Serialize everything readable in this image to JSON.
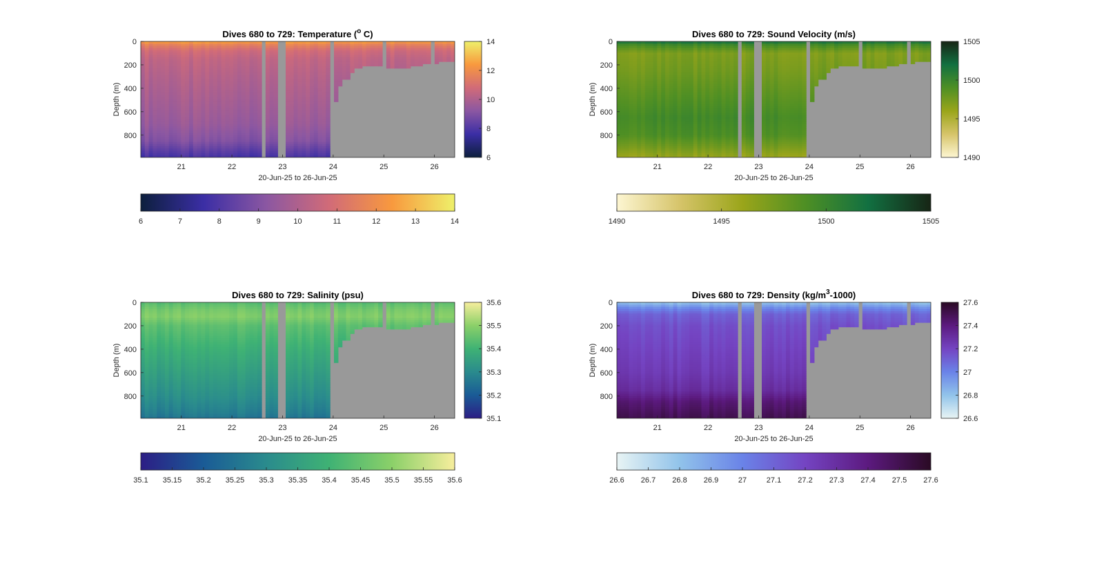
{
  "figure": {
    "x_range_label": "20-Jun-25 to 26-Jun-25",
    "depth_label": "Depth (m)"
  },
  "chart_data": [
    {
      "type": "heatmap",
      "id": "temperature",
      "title": "Dives 680 to 729: Temperature (",
      "title_sup": "o",
      "title_tail": " C)",
      "xlabel": "20-Jun-25 to 26-Jun-25",
      "ylabel": "Depth (m)",
      "xlim": [
        20.2,
        26.4
      ],
      "ylim": [
        0,
        990
      ],
      "y_reversed": true,
      "x_ticks": [
        21,
        22,
        23,
        24,
        25,
        26
      ],
      "y_ticks": [
        0,
        200,
        400,
        600,
        800
      ],
      "clim": [
        6,
        14
      ],
      "colormap": [
        "#0c1f3d",
        "#3b2ea5",
        "#8b57a2",
        "#d16b78",
        "#f8993e",
        "#eef06a"
      ],
      "colorbar_ticks": [
        6,
        8,
        10,
        12,
        14
      ],
      "h_colorbar_ticks": [
        6,
        7,
        8,
        9,
        10,
        11,
        12,
        13,
        14
      ],
      "profile": [
        [
          0,
          12.6
        ],
        [
          30,
          11.6
        ],
        [
          80,
          10.8
        ],
        [
          150,
          10.4
        ],
        [
          300,
          10.1
        ],
        [
          500,
          9.8
        ],
        [
          700,
          9.5
        ],
        [
          850,
          9.0
        ],
        [
          930,
          8.3
        ],
        [
          990,
          7.8
        ]
      ]
    },
    {
      "type": "heatmap",
      "id": "sound_velocity",
      "title": "Dives 680 to 729: Sound Velocity (m/s)",
      "title_sup": "",
      "title_tail": "",
      "xlabel": "20-Jun-25 to 26-Jun-25",
      "ylabel": "Depth (m)",
      "xlim": [
        20.2,
        26.4
      ],
      "ylim": [
        0,
        990
      ],
      "y_reversed": true,
      "x_ticks": [
        21,
        22,
        23,
        24,
        25,
        26
      ],
      "y_ticks": [
        0,
        200,
        400,
        600,
        800
      ],
      "clim": [
        1490,
        1505
      ],
      "colormap": [
        "#fdf6d2",
        "#d6c46a",
        "#9aa51a",
        "#4e8f24",
        "#127041",
        "#172515"
      ],
      "colorbar_ticks": [
        1490,
        1495,
        1500,
        1505
      ],
      "h_colorbar_ticks": [
        1490,
        1495,
        1500,
        1505
      ],
      "profile": [
        [
          0,
          1502.0
        ],
        [
          30,
          1499.5
        ],
        [
          100,
          1497.0
        ],
        [
          250,
          1497.5
        ],
        [
          450,
          1498.5
        ],
        [
          650,
          1499.5
        ],
        [
          800,
          1499.0
        ],
        [
          900,
          1497.5
        ],
        [
          990,
          1496.0
        ]
      ]
    },
    {
      "type": "heatmap",
      "id": "salinity",
      "title": "Dives 680 to 729: Salinity (psu)",
      "title_sup": "",
      "title_tail": "",
      "xlabel": "20-Jun-25 to 26-Jun-25",
      "ylabel": "Depth (m)",
      "xlim": [
        20.2,
        26.4
      ],
      "ylim": [
        0,
        990
      ],
      "y_reversed": true,
      "x_ticks": [
        21,
        22,
        23,
        24,
        25,
        26
      ],
      "y_ticks": [
        0,
        200,
        400,
        600,
        800
      ],
      "clim": [
        35.1,
        35.6
      ],
      "colormap": [
        "#2c1e85",
        "#1a5b96",
        "#2a8b8d",
        "#3fb274",
        "#8bd069",
        "#f7ee9d"
      ],
      "colorbar_ticks": [
        35.1,
        35.2,
        35.3,
        35.4,
        35.5,
        35.6
      ],
      "h_colorbar_ticks": [
        35.1,
        35.15,
        35.2,
        35.25,
        35.3,
        35.35,
        35.4,
        35.45,
        35.5,
        35.55,
        35.6
      ],
      "profile": [
        [
          0,
          35.43
        ],
        [
          60,
          35.47
        ],
        [
          120,
          35.49
        ],
        [
          200,
          35.44
        ],
        [
          400,
          35.39
        ],
        [
          600,
          35.35
        ],
        [
          800,
          35.31
        ],
        [
          950,
          35.27
        ],
        [
          990,
          35.25
        ]
      ]
    },
    {
      "type": "heatmap",
      "id": "density",
      "title": "Dives 680 to 729: Density (kg/m",
      "title_sup": "3",
      "title_tail": "-1000)",
      "xlabel": "20-Jun-25 to 26-Jun-25",
      "ylabel": "Depth (m)",
      "xlim": [
        20.2,
        26.4
      ],
      "ylim": [
        0,
        990
      ],
      "y_reversed": true,
      "x_ticks": [
        21,
        22,
        23,
        24,
        25,
        26
      ],
      "y_ticks": [
        0,
        200,
        400,
        600,
        800
      ],
      "clim": [
        26.6,
        27.6
      ],
      "colormap": [
        "#e8f4f4",
        "#91c3ea",
        "#6a83e8",
        "#7444c2",
        "#5c1a7f",
        "#2a0a24"
      ],
      "colorbar_ticks": [
        26.6,
        26.8,
        27,
        27.2,
        27.4,
        27.6
      ],
      "h_colorbar_ticks": [
        26.6,
        26.7,
        26.8,
        26.9,
        27,
        27.1,
        27.2,
        27.3,
        27.4,
        27.5,
        27.6
      ],
      "profile": [
        [
          0,
          26.78
        ],
        [
          40,
          26.95
        ],
        [
          100,
          27.1
        ],
        [
          200,
          27.16
        ],
        [
          400,
          27.2
        ],
        [
          600,
          27.24
        ],
        [
          750,
          27.3
        ],
        [
          850,
          27.42
        ],
        [
          990,
          27.5
        ]
      ]
    }
  ],
  "gaps": [
    [
      22.56,
      22.67
    ],
    [
      22.92,
      23.05
    ],
    [
      23.93,
      24.05
    ],
    [
      24.97,
      25.05
    ],
    [
      25.95,
      26.03
    ]
  ],
  "data_bottom": [
    [
      24.0,
      990
    ],
    [
      24.05,
      505
    ],
    [
      24.13,
      380
    ],
    [
      24.2,
      330
    ],
    [
      24.3,
      270
    ],
    [
      24.4,
      230
    ],
    [
      24.55,
      200
    ],
    [
      25.0,
      200
    ],
    [
      25.05,
      225
    ],
    [
      25.3,
      220
    ],
    [
      25.5,
      205
    ],
    [
      25.75,
      195
    ],
    [
      25.95,
      190
    ],
    [
      26.1,
      175
    ],
    [
      26.4,
      190
    ]
  ]
}
